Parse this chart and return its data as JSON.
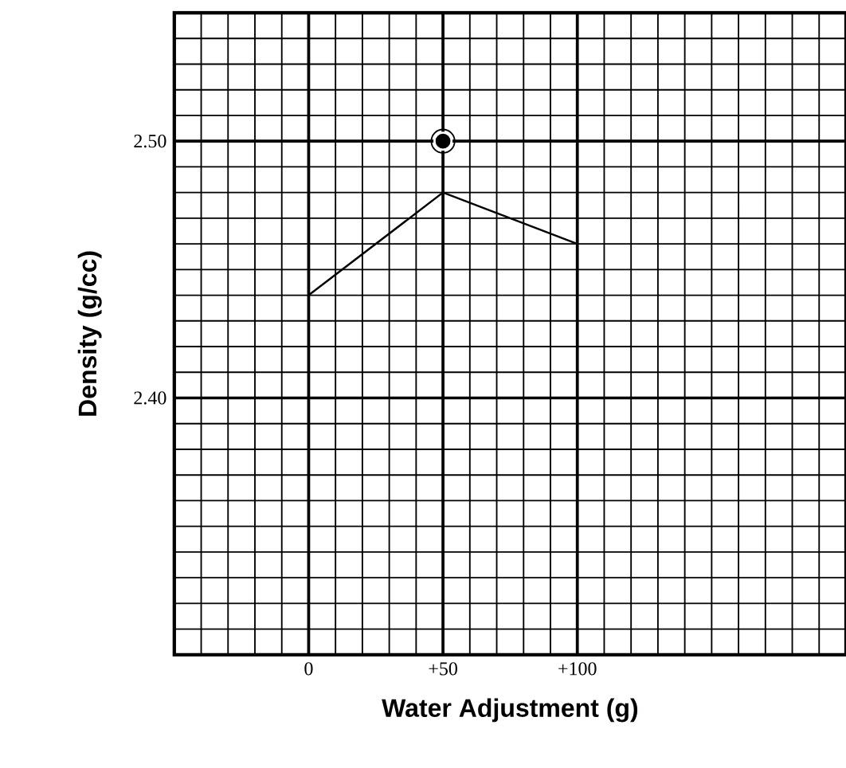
{
  "chart_data": {
    "type": "line",
    "xlabel": "Water Adjustment  (g)",
    "ylabel": "Density  (g/cc)",
    "xlim": [
      -50,
      200
    ],
    "ylim": [
      2.3,
      2.55
    ],
    "xticks": [
      {
        "value": 0,
        "label": "0"
      },
      {
        "value": 50,
        "label": "+50"
      },
      {
        "value": 100,
        "label": "+100"
      }
    ],
    "yticks": [
      {
        "value": 2.4,
        "label": "2.40"
      },
      {
        "value": 2.5,
        "label": "2.50"
      }
    ],
    "grid": true,
    "series": [
      {
        "color": "#000000",
        "x": [
          0,
          50,
          100
        ],
        "values": [
          2.44,
          2.48,
          2.46
        ],
        "marker": "none"
      },
      {
        "type": "scatter",
        "color": "#000000",
        "x": [
          50
        ],
        "values": [
          2.5
        ],
        "marker": "circle"
      }
    ]
  }
}
